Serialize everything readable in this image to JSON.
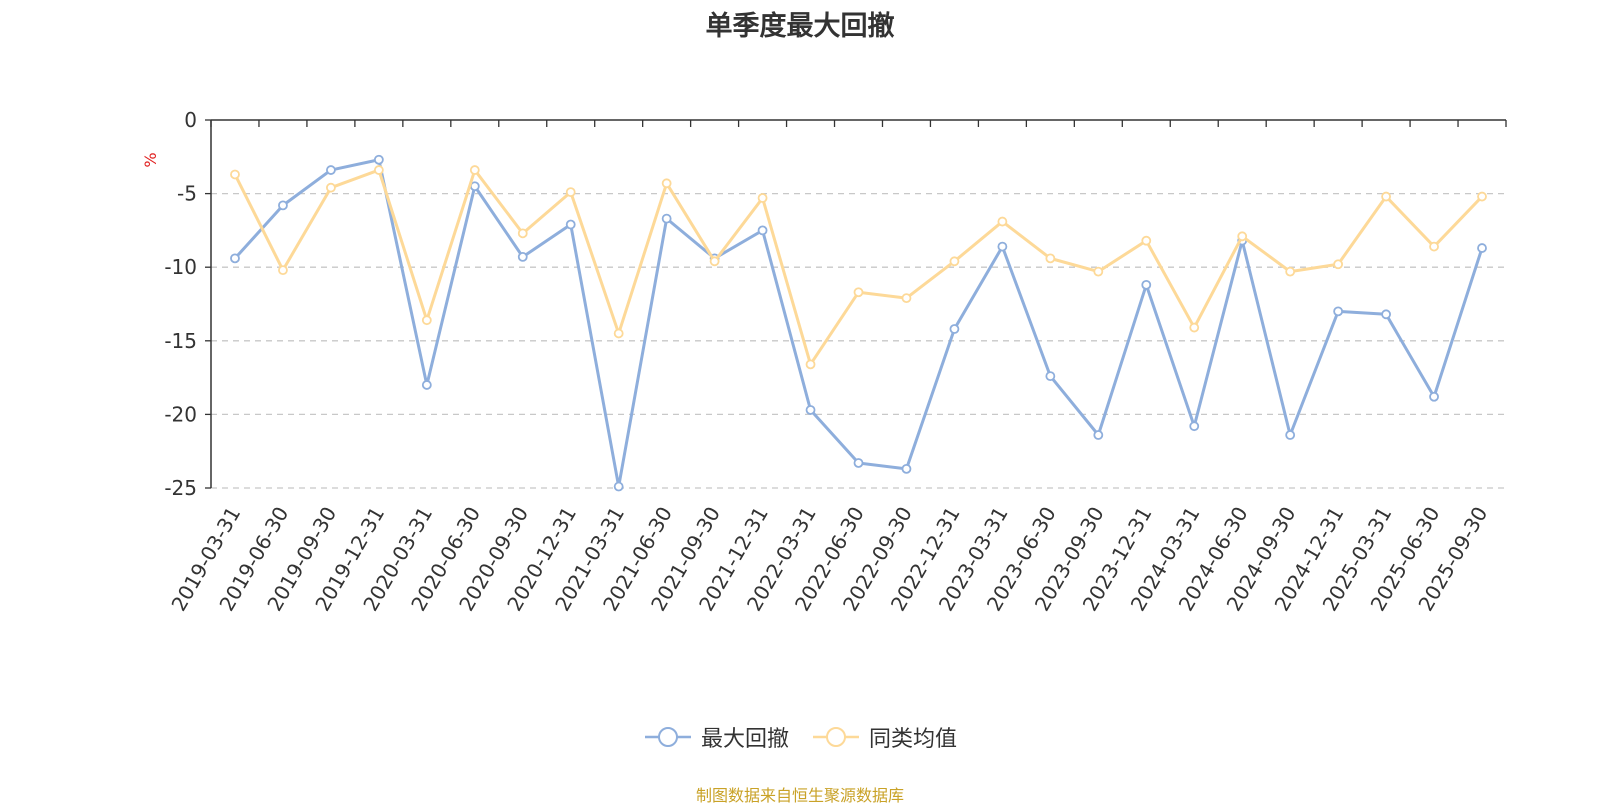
{
  "title": "单季度最大回撤",
  "source_note": "制图数据来自恒生聚源数据库",
  "colors": {
    "series1": "#8eaedc",
    "series2": "#fdd998",
    "grid": "#c8c8c8",
    "axis": "#333333",
    "unit": "#e02020"
  },
  "legend": [
    {
      "name": "最大回撤",
      "color": "#8eaedc",
      "icon": "circle-line-icon"
    },
    {
      "name": "同类均值",
      "color": "#fdd998",
      "icon": "circle-line-icon"
    }
  ],
  "chart_data": {
    "type": "line",
    "title": "单季度最大回撤",
    "ylabel": "%",
    "ylim": [
      -25,
      0
    ],
    "yticks": [
      0,
      -5,
      -10,
      -15,
      -20,
      -25
    ],
    "grid": true,
    "legend_position": "bottom-center",
    "categories": [
      "2019-03-31",
      "2019-06-30",
      "2019-09-30",
      "2019-12-31",
      "2020-03-31",
      "2020-06-30",
      "2020-09-30",
      "2020-12-31",
      "2021-03-31",
      "2021-06-30",
      "2021-09-30",
      "2021-12-31",
      "2022-03-31",
      "2022-06-30",
      "2022-09-30",
      "2022-12-31",
      "2023-03-31",
      "2023-06-30",
      "2023-09-30",
      "2023-12-31",
      "2024-03-31",
      "2024-06-30",
      "2024-09-30",
      "2024-12-31",
      "2025-03-31",
      "2025-06-30",
      "2025-09-30"
    ],
    "series": [
      {
        "name": "最大回撤",
        "values": [
          -9.4,
          -5.8,
          -3.4,
          -2.7,
          -18.0,
          -4.5,
          -9.3,
          -7.1,
          -24.9,
          -6.7,
          -9.4,
          -7.5,
          -19.7,
          -23.3,
          -23.7,
          -14.2,
          -8.6,
          -17.4,
          -21.4,
          -11.2,
          -20.8,
          -8.2,
          -21.4,
          -13.0,
          -13.2,
          -18.8,
          -8.7
        ]
      },
      {
        "name": "同类均值",
        "values": [
          -3.7,
          -10.2,
          -4.6,
          -3.4,
          -13.6,
          -3.4,
          -7.7,
          -4.9,
          -14.5,
          -4.3,
          -9.6,
          -5.3,
          -16.6,
          -11.7,
          -12.1,
          -9.6,
          -6.9,
          -9.4,
          -10.3,
          -8.2,
          -14.1,
          -7.9,
          -10.3,
          -9.8,
          -5.2,
          -8.6,
          -5.2
        ]
      }
    ]
  }
}
